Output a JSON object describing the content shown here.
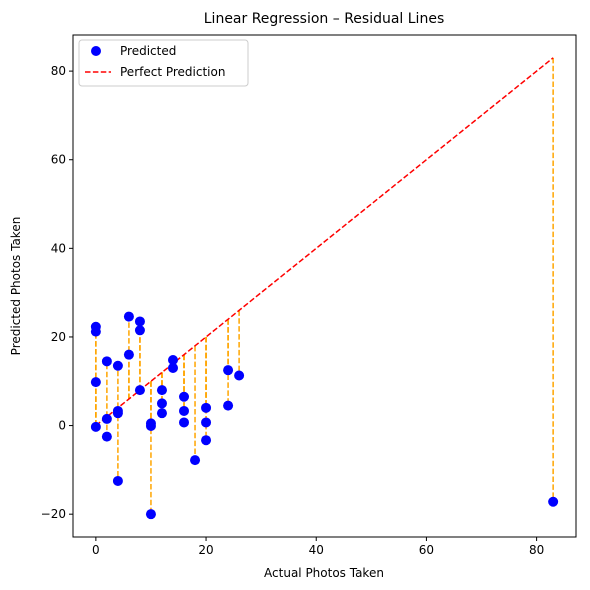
{
  "chart_data": {
    "type": "scatter",
    "title": "Linear Regression – Residual Lines",
    "xlabel": "Actual Photos Taken",
    "ylabel": "Predicted Photos Taken",
    "xlim": [
      -4.15,
      87.15
    ],
    "ylim": [
      -25.15,
      88.15
    ],
    "xticks": [
      0,
      20,
      40,
      60,
      80
    ],
    "yticks": [
      -20,
      0,
      20,
      40,
      60,
      80
    ],
    "grid": false,
    "legend_position": "top-left",
    "series": [
      {
        "name": "Predicted",
        "kind": "scatter",
        "color": "#0000ff",
        "points": [
          {
            "x": 0,
            "y": 22.3
          },
          {
            "x": 0,
            "y": 21.2
          },
          {
            "x": 0,
            "y": 9.8
          },
          {
            "x": 0,
            "y": -0.3
          },
          {
            "x": 2,
            "y": 14.5
          },
          {
            "x": 2,
            "y": 1.5
          },
          {
            "x": 2,
            "y": -2.5
          },
          {
            "x": 4,
            "y": 13.5
          },
          {
            "x": 4,
            "y": 3.3
          },
          {
            "x": 4,
            "y": 2.8
          },
          {
            "x": 4,
            "y": -12.5
          },
          {
            "x": 6,
            "y": 24.6
          },
          {
            "x": 6,
            "y": 16.0
          },
          {
            "x": 8,
            "y": 23.5
          },
          {
            "x": 8,
            "y": 21.5
          },
          {
            "x": 8,
            "y": 8.0
          },
          {
            "x": 10,
            "y": 0.5
          },
          {
            "x": 10,
            "y": -0.1
          },
          {
            "x": 10,
            "y": -20.0
          },
          {
            "x": 12,
            "y": 8.0
          },
          {
            "x": 12,
            "y": 5.0
          },
          {
            "x": 12,
            "y": 2.8
          },
          {
            "x": 14,
            "y": 14.8
          },
          {
            "x": 14,
            "y": 13.0
          },
          {
            "x": 16,
            "y": 6.5
          },
          {
            "x": 16,
            "y": 3.3
          },
          {
            "x": 16,
            "y": 0.7
          },
          {
            "x": 18,
            "y": -7.8
          },
          {
            "x": 20,
            "y": 4.0
          },
          {
            "x": 20,
            "y": 0.7
          },
          {
            "x": 20,
            "y": -3.3
          },
          {
            "x": 24,
            "y": 12.5
          },
          {
            "x": 24,
            "y": 4.5
          },
          {
            "x": 26,
            "y": 11.3
          },
          {
            "x": 83,
            "y": -17.2
          }
        ]
      },
      {
        "name": "Perfect Prediction",
        "kind": "line",
        "style": "dashed",
        "color": "#ff0000",
        "points": [
          {
            "x": 0,
            "y": 0
          },
          {
            "x": 83,
            "y": 83
          }
        ]
      }
    ],
    "residual_color": "#ffa500"
  }
}
